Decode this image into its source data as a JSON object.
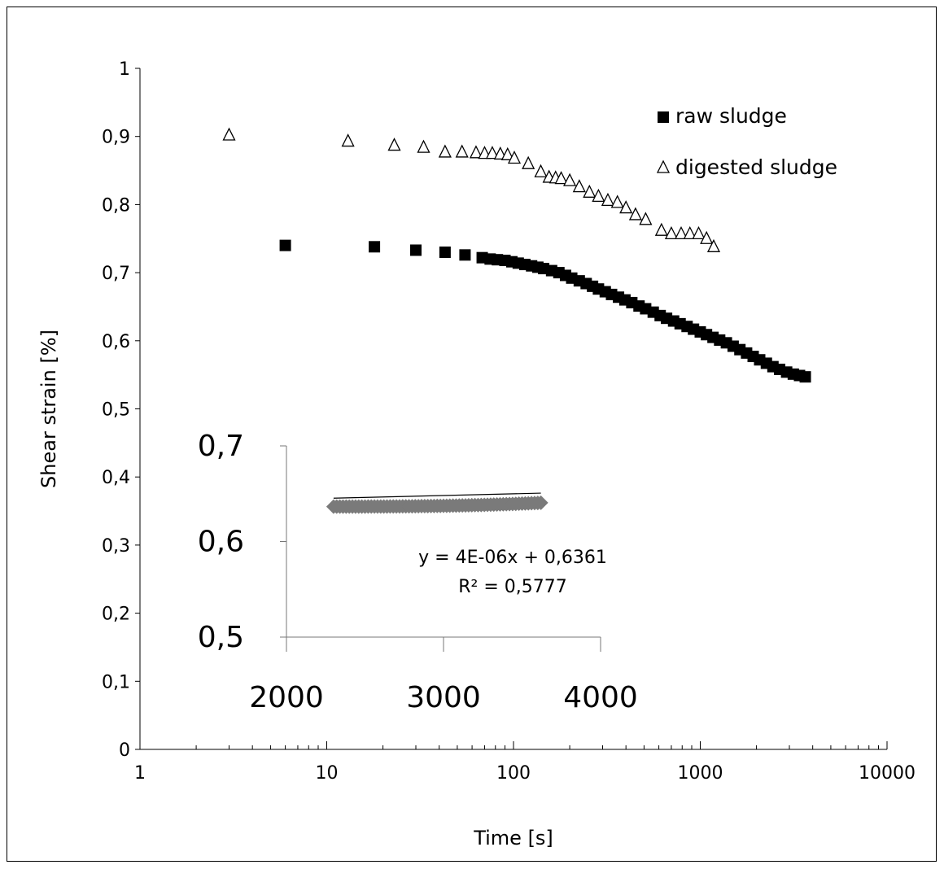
{
  "chart_data": [
    {
      "type": "scatter",
      "xlabel": "Time [s]",
      "ylabel": "Shear strain [%]",
      "xscale": "log",
      "xlim": [
        1,
        10000
      ],
      "ylim": [
        0,
        1
      ],
      "xticks": [
        "1",
        "10",
        "100",
        "1000",
        "10000"
      ],
      "yticks": [
        "0",
        "0,1",
        "0,2",
        "0,3",
        "0,4",
        "0,5",
        "0,6",
        "0,7",
        "0,8",
        "0,9",
        "1"
      ],
      "grid": false,
      "legend": "top-right",
      "series": [
        {
          "name": "raw sludge",
          "marker": "filled-square",
          "color": "#000000",
          "points": [
            [
              6,
              0.74
            ],
            [
              18,
              0.738
            ],
            [
              30,
              0.733
            ],
            [
              43,
              0.73
            ],
            [
              55,
              0.726
            ],
            [
              68,
              0.722
            ],
            [
              75,
              0.72
            ],
            [
              82,
              0.719
            ],
            [
              90,
              0.718
            ],
            [
              98,
              0.716
            ],
            [
              106,
              0.714
            ],
            [
              115,
              0.712
            ],
            [
              125,
              0.71
            ],
            [
              135,
              0.708
            ],
            [
              145,
              0.706
            ],
            [
              160,
              0.703
            ],
            [
              175,
              0.7
            ],
            [
              190,
              0.696
            ],
            [
              205,
              0.692
            ],
            [
              225,
              0.688
            ],
            [
              245,
              0.684
            ],
            [
              265,
              0.68
            ],
            [
              285,
              0.676
            ],
            [
              310,
              0.672
            ],
            [
              335,
              0.668
            ],
            [
              365,
              0.664
            ],
            [
              395,
              0.66
            ],
            [
              430,
              0.656
            ],
            [
              470,
              0.651
            ],
            [
              510,
              0.647
            ],
            [
              560,
              0.642
            ],
            [
              610,
              0.637
            ],
            [
              660,
              0.633
            ],
            [
              720,
              0.629
            ],
            [
              780,
              0.625
            ],
            [
              850,
              0.621
            ],
            [
              920,
              0.617
            ],
            [
              1000,
              0.613
            ],
            [
              1080,
              0.609
            ],
            [
              1170,
              0.605
            ],
            [
              1270,
              0.601
            ],
            [
              1380,
              0.597
            ],
            [
              1500,
              0.592
            ],
            [
              1630,
              0.587
            ],
            [
              1770,
              0.582
            ],
            [
              1920,
              0.577
            ],
            [
              2080,
              0.572
            ],
            [
              2260,
              0.567
            ],
            [
              2450,
              0.562
            ],
            [
              2660,
              0.558
            ],
            [
              2900,
              0.554
            ],
            [
              3150,
              0.551
            ],
            [
              3400,
              0.549
            ],
            [
              3650,
              0.547
            ]
          ]
        },
        {
          "name": "digested sludge",
          "marker": "open-triangle",
          "color": "#000000",
          "points": [
            [
              3,
              0.902
            ],
            [
              13,
              0.893
            ],
            [
              23,
              0.887
            ],
            [
              33,
              0.884
            ],
            [
              43,
              0.877
            ],
            [
              53,
              0.877
            ],
            [
              63,
              0.876
            ],
            [
              70,
              0.875
            ],
            [
              77,
              0.875
            ],
            [
              85,
              0.874
            ],
            [
              93,
              0.873
            ],
            [
              101,
              0.868
            ],
            [
              120,
              0.86
            ],
            [
              140,
              0.848
            ],
            [
              155,
              0.84
            ],
            [
              168,
              0.839
            ],
            [
              180,
              0.838
            ],
            [
              200,
              0.835
            ],
            [
              225,
              0.826
            ],
            [
              255,
              0.818
            ],
            [
              285,
              0.812
            ],
            [
              320,
              0.806
            ],
            [
              360,
              0.803
            ],
            [
              400,
              0.795
            ],
            [
              450,
              0.785
            ],
            [
              510,
              0.778
            ],
            [
              620,
              0.762
            ],
            [
              700,
              0.757
            ],
            [
              790,
              0.757
            ],
            [
              880,
              0.757
            ],
            [
              980,
              0.757
            ],
            [
              1080,
              0.75
            ],
            [
              1180,
              0.738
            ]
          ]
        }
      ]
    },
    {
      "type": "scatter",
      "xlim": [
        2000,
        4000
      ],
      "ylim": [
        0.5,
        0.7
      ],
      "xticks": [
        "2000",
        "3000",
        "4000"
      ],
      "yticks": [
        "0,5",
        "0,6",
        "0,7"
      ],
      "grid": false,
      "marker_color": "#7a7a7a",
      "trendline": {
        "slope": 4e-06,
        "intercept": 0.6361,
        "equation": "y = 4E-06x + 0,6361",
        "r2": "R² = 0,5777"
      },
      "x_start": 2300,
      "x_end": 3620,
      "y_start": 0.6365,
      "y_end": 0.6405
    }
  ]
}
